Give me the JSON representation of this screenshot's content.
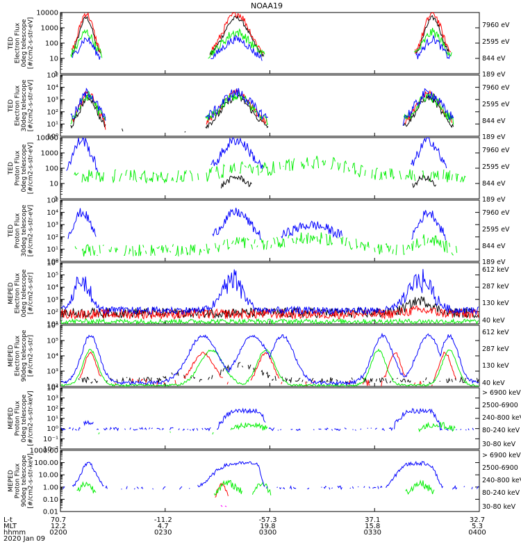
{
  "title": "NOAA19",
  "colors": {
    "blue": "#0000ff",
    "green": "#00ee00",
    "red": "#ff0000",
    "black": "#000000",
    "magenta": "#ff00ff"
  },
  "chart_data": [
    {
      "type": "line",
      "log": true,
      "ylabel": [
        "TED",
        "Electron Flux",
        "0deg telescope",
        "[#/cm2-s-str-eV]"
      ],
      "ytick_labels": [
        "1",
        "10",
        "100",
        "1000",
        "10000"
      ],
      "ylim_exp": [
        0,
        4
      ],
      "legend": [
        {
          "label": "7960 eV",
          "color": "#000000"
        },
        {
          "label": "2595 eV",
          "color": "#ff0000"
        },
        {
          "label": "844 eV",
          "color": "#00ee00"
        },
        {
          "label": "189 eV",
          "color": "#0000ff"
        }
      ]
    },
    {
      "type": "line",
      "log": true,
      "ylabel": [
        "TED",
        "Electron Flux",
        "30deg telescope",
        "[#/cm2-s-str-eV]"
      ],
      "ytick_labels": [
        "10⁰",
        "10¹",
        "10²",
        "10³",
        "10⁴",
        "10⁵"
      ],
      "ylim_exp": [
        0,
        5
      ],
      "legend": [
        {
          "label": "7960 eV",
          "color": "#000000"
        },
        {
          "label": "2595 eV",
          "color": "#ff0000"
        },
        {
          "label": "844 eV",
          "color": "#00ee00"
        },
        {
          "label": "189 eV",
          "color": "#0000ff"
        }
      ]
    },
    {
      "type": "line",
      "log": true,
      "ylabel": [
        "TED",
        "Proton Flux",
        "0deg telescope",
        "[#/cm2-s-str-eV]"
      ],
      "ytick_labels": [
        "1",
        "10",
        "100",
        "1000",
        "10000"
      ],
      "ylim_exp": [
        0,
        4
      ],
      "legend": [
        {
          "label": "7960 eV",
          "color": "#000000"
        },
        {
          "label": "2595 eV",
          "color": "#ff0000"
        },
        {
          "label": "844 eV",
          "color": "#00ee00"
        },
        {
          "label": "189 eV",
          "color": "#0000ff"
        }
      ]
    },
    {
      "type": "line",
      "log": true,
      "ylabel": [
        "TED",
        "Proton Flux",
        "30deg telescope",
        "[#/cm2-s-str-eV]"
      ],
      "ytick_labels": [
        "10⁰",
        "10¹",
        "10²",
        "10³",
        "10⁴",
        "10⁵"
      ],
      "ylim_exp": [
        0,
        5
      ],
      "legend": [
        {
          "label": "7960 eV",
          "color": "#000000"
        },
        {
          "label": "2595 eV",
          "color": "#ff0000"
        },
        {
          "label": "844 eV",
          "color": "#00ee00"
        },
        {
          "label": "189 eV",
          "color": "#0000ff"
        }
      ]
    },
    {
      "type": "line",
      "log": true,
      "ylabel": [
        "MEPED",
        "Electron Flux",
        "0deg telescope",
        "[#/cm2-s-str]"
      ],
      "ytick_labels": [
        "10¹",
        "10²",
        "10³",
        "10⁴",
        "10⁵",
        "10⁶"
      ],
      "ylim_exp": [
        1,
        6
      ],
      "legend": [
        {
          "label": "612 keV",
          "color": "#000000"
        },
        {
          "label": "287 keV",
          "color": "#ff0000"
        },
        {
          "label": "130 keV",
          "color": "#00ee00"
        },
        {
          "label": "40 keV",
          "color": "#0000ff"
        }
      ]
    },
    {
      "type": "line",
      "log": true,
      "ylabel": [
        "MEPED",
        "Electron Flux",
        "90deg telescope",
        "[#/cm2-s-str]"
      ],
      "ytick_labels": [
        "10²",
        "10³",
        "10⁴",
        "10⁵",
        "10⁶"
      ],
      "ylim_exp": [
        2,
        6
      ],
      "legend": [
        {
          "label": "612 keV",
          "color": "#000000"
        },
        {
          "label": "287 keV",
          "color": "#ff0000"
        },
        {
          "label": "130 keV",
          "color": "#00ee00"
        },
        {
          "label": "40 keV",
          "color": "#0000ff"
        }
      ]
    },
    {
      "type": "line",
      "log": true,
      "ylabel": [
        "MEPED",
        "Proton Flux",
        "0deg telescope",
        "[#/cm2-s-str-keV]"
      ],
      "ytick_labels": [
        "10⁻²",
        "10⁻¹",
        "10⁰",
        "10¹",
        "10²",
        "10³",
        "10⁴"
      ],
      "ylim_exp": [
        -2,
        4
      ],
      "legend": [
        {
          "label": "> 6900 keV",
          "color": "#ff00ff"
        },
        {
          "label": "2500-6900",
          "color": "#000000"
        },
        {
          "label": "240-800 keV",
          "color": "#ff0000"
        },
        {
          "label": "80-240 keV",
          "color": "#00ee00"
        },
        {
          "label": "30-80 keV",
          "color": "#0000ff"
        }
      ]
    },
    {
      "type": "line",
      "log": true,
      "ylabel": [
        "MEPED",
        "Proton Flux",
        "90deg telescope",
        "[#/cm2-s-str-keV]"
      ],
      "ytick_labels": [
        "0.01",
        "0.10",
        "1.00",
        "10.00",
        "100.00",
        "1000.00"
      ],
      "ylim_exp": [
        -2,
        3
      ],
      "legend": [
        {
          "label": "> 6900 keV",
          "color": "#ff00ff"
        },
        {
          "label": "2500-6900",
          "color": "#000000"
        },
        {
          "label": "240-800 keV",
          "color": "#ff0000"
        },
        {
          "label": "80-240 keV",
          "color": "#00ee00"
        },
        {
          "label": "30-80 keV",
          "color": "#0000ff"
        }
      ]
    }
  ],
  "x_axis": {
    "row_labels": [
      "L-t",
      "MLT",
      "hhmm",
      "2020 Jan 09"
    ],
    "ticks": [
      {
        "lt": "70.7",
        "mlt": "12.2",
        "hhmm": "0200"
      },
      {
        "lt": "-11.2",
        "mlt": "4.7",
        "hhmm": "0230"
      },
      {
        "lt": "-57.3",
        "mlt": "19.8",
        "hhmm": "0300"
      },
      {
        "lt": "37.1",
        "mlt": "15.8",
        "hhmm": "0330"
      },
      {
        "lt": "32.7",
        "mlt": "5.3",
        "hhmm": "0400"
      }
    ]
  }
}
